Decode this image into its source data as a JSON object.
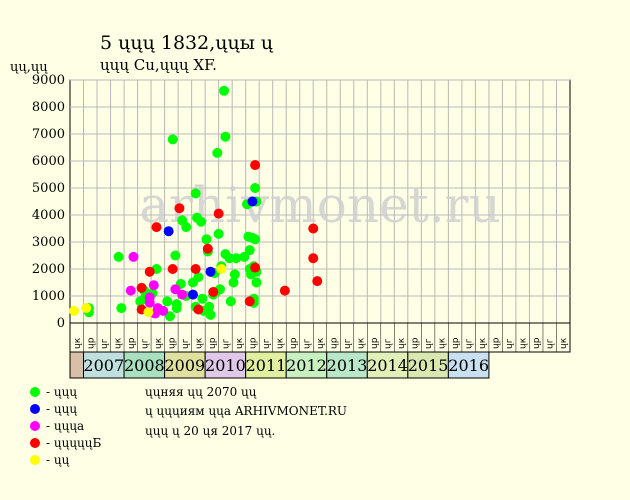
{
  "header": {
    "title": "5 ųųų 1832,ųųы ų",
    "subtitle": "ųųų Cu,ųųų XF.",
    "y_unit": "ųų,ųų"
  },
  "watermark": "arhivmonet.ru",
  "legend": [
    {
      "label": "- ųųų",
      "color": "#00ff00"
    },
    {
      "label": "- ųųų",
      "color": "#0000ff"
    },
    {
      "label": "- ųųųа",
      "color": "#ff00ff"
    },
    {
      "label": "- ųųųųųБ",
      "color": "#ff0000"
    },
    {
      "label": "- ųų",
      "color": "#ffff00"
    }
  ],
  "notes": [
    "ųųняя ųų 2070 ųų",
    "ų ųųųиям ųųа ARHIVMONET.RU",
    "ųųų ų 20 ųя 2017 ųų."
  ],
  "chart_data": {
    "type": "scatter",
    "ylim": [
      0,
      9000
    ],
    "y_ticks": [
      "0",
      "1000",
      "2000",
      "3000",
      "4000",
      "5000",
      "6000",
      "7000",
      "8000",
      "9000"
    ],
    "x_slot_labels": [
      "ųк",
      "ųр",
      "ųг",
      "ųк",
      "ųр",
      "ųг",
      "ųк",
      "ųр",
      "ųг",
      "ųк",
      "ųр",
      "ųг",
      "ųк",
      "ųр",
      "ųг",
      "ųк",
      "ųр",
      "ųг",
      "ųк",
      "ųр",
      "ųг",
      "ųк",
      "ųр",
      "ųг",
      "ųк",
      "ųр",
      "ųг",
      "ųк",
      "ųр",
      "ųг",
      "ųк",
      "ųр",
      "ųг",
      "ųк",
      "ųр",
      "ųг",
      "ųк"
    ],
    "years": [
      {
        "label": "",
        "color": "#d8c0a8"
      },
      {
        "label": "2007",
        "color": "#c0e0e0"
      },
      {
        "label": "2008",
        "color": "#a8e0c0"
      },
      {
        "label": "2009",
        "color": "#e0e0a0"
      },
      {
        "label": "2010",
        "color": "#e0c8e8"
      },
      {
        "label": "2011",
        "color": "#e0f0a0"
      },
      {
        "label": "2012",
        "color": "#c8f0c0"
      },
      {
        "label": "2013",
        "color": "#b8e8c8"
      },
      {
        "label": "2014",
        "color": "#e0f0b8"
      },
      {
        "label": "2015",
        "color": "#d8e8b0"
      },
      {
        "label": "2016",
        "color": "#c8e0f0"
      }
    ],
    "series": [
      {
        "name": "- ųųų",
        "color": "#00ff00",
        "points": [
          [
            1.4,
            550
          ],
          [
            1.4,
            400
          ],
          [
            3.6,
            2450
          ],
          [
            3.8,
            550
          ],
          [
            5.2,
            800
          ],
          [
            5.5,
            1200
          ],
          [
            5.6,
            1000
          ],
          [
            6.1,
            1100
          ],
          [
            6.4,
            2000
          ],
          [
            7.2,
            800
          ],
          [
            7.4,
            250
          ],
          [
            7.6,
            6800
          ],
          [
            7.8,
            2500
          ],
          [
            7.9,
            700
          ],
          [
            7.9,
            550
          ],
          [
            8.2,
            1450
          ],
          [
            8.3,
            3800
          ],
          [
            8.6,
            3550
          ],
          [
            8.6,
            1000
          ],
          [
            9.1,
            1500
          ],
          [
            9.3,
            4800
          ],
          [
            9.4,
            3900
          ],
          [
            9.3,
            600
          ],
          [
            9.5,
            1700
          ],
          [
            9.7,
            3750
          ],
          [
            9.8,
            900
          ],
          [
            9.9,
            450
          ],
          [
            10.1,
            3100
          ],
          [
            10.2,
            2650
          ],
          [
            10.3,
            600
          ],
          [
            10.4,
            300
          ],
          [
            10.6,
            1050
          ],
          [
            10.7,
            1850
          ],
          [
            10.8,
            1150
          ],
          [
            10.9,
            6300
          ],
          [
            11.0,
            3300
          ],
          [
            11.1,
            1250
          ],
          [
            11.2,
            2100
          ],
          [
            11.4,
            8600
          ],
          [
            11.5,
            6900
          ],
          [
            11.5,
            2550
          ],
          [
            11.8,
            2400
          ],
          [
            11.9,
            800
          ],
          [
            12.1,
            1500
          ],
          [
            12.3,
            2400
          ],
          [
            12.2,
            1800
          ],
          [
            12.9,
            2450
          ],
          [
            13.1,
            4400
          ],
          [
            13.2,
            3200
          ],
          [
            13.3,
            2700
          ],
          [
            13.3,
            2000
          ],
          [
            13.4,
            1800
          ],
          [
            13.5,
            3150
          ],
          [
            13.6,
            2100
          ],
          [
            13.6,
            900
          ],
          [
            13.7,
            5000
          ],
          [
            13.7,
            3100
          ],
          [
            13.8,
            4500
          ],
          [
            13.8,
            1900
          ],
          [
            13.8,
            1500
          ],
          [
            13.6,
            750
          ]
        ]
      },
      {
        "name": "- ųųų",
        "color": "#0000ff",
        "points": [
          [
            7.3,
            3400
          ],
          [
            9.1,
            1050
          ],
          [
            10.4,
            1900
          ],
          [
            13.5,
            4500
          ]
        ]
      },
      {
        "name": "- ųųųа",
        "color": "#ff00ff",
        "points": [
          [
            4.5,
            1200
          ],
          [
            4.7,
            2450
          ],
          [
            5.9,
            950
          ],
          [
            5.9,
            750
          ],
          [
            6.2,
            1400
          ],
          [
            6.3,
            350
          ],
          [
            6.5,
            550
          ],
          [
            6.9,
            450
          ],
          [
            7.8,
            1250
          ],
          [
            8.3,
            1050
          ]
        ]
      },
      {
        "name": "- ųųųųųБ",
        "color": "#ff0000",
        "points": [
          [
            5.3,
            500
          ],
          [
            5.3,
            1300
          ],
          [
            5.9,
            1900
          ],
          [
            6.4,
            3550
          ],
          [
            7.6,
            2000
          ],
          [
            8.1,
            4250
          ],
          [
            9.3,
            2000
          ],
          [
            9.5,
            500
          ],
          [
            10.2,
            2750
          ],
          [
            10.6,
            1150
          ],
          [
            11.0,
            4050
          ],
          [
            13.3,
            800
          ],
          [
            13.7,
            5850
          ],
          [
            13.7,
            2050
          ],
          [
            15.9,
            1200
          ],
          [
            18.0,
            3500
          ],
          [
            18.0,
            2400
          ],
          [
            18.3,
            1550
          ]
        ]
      },
      {
        "name": "- ųų",
        "color": "#ffff00",
        "points": [
          [
            0.3,
            450
          ],
          [
            1.2,
            550
          ],
          [
            5.8,
            400
          ],
          [
            11.2,
            2000
          ]
        ]
      }
    ]
  }
}
